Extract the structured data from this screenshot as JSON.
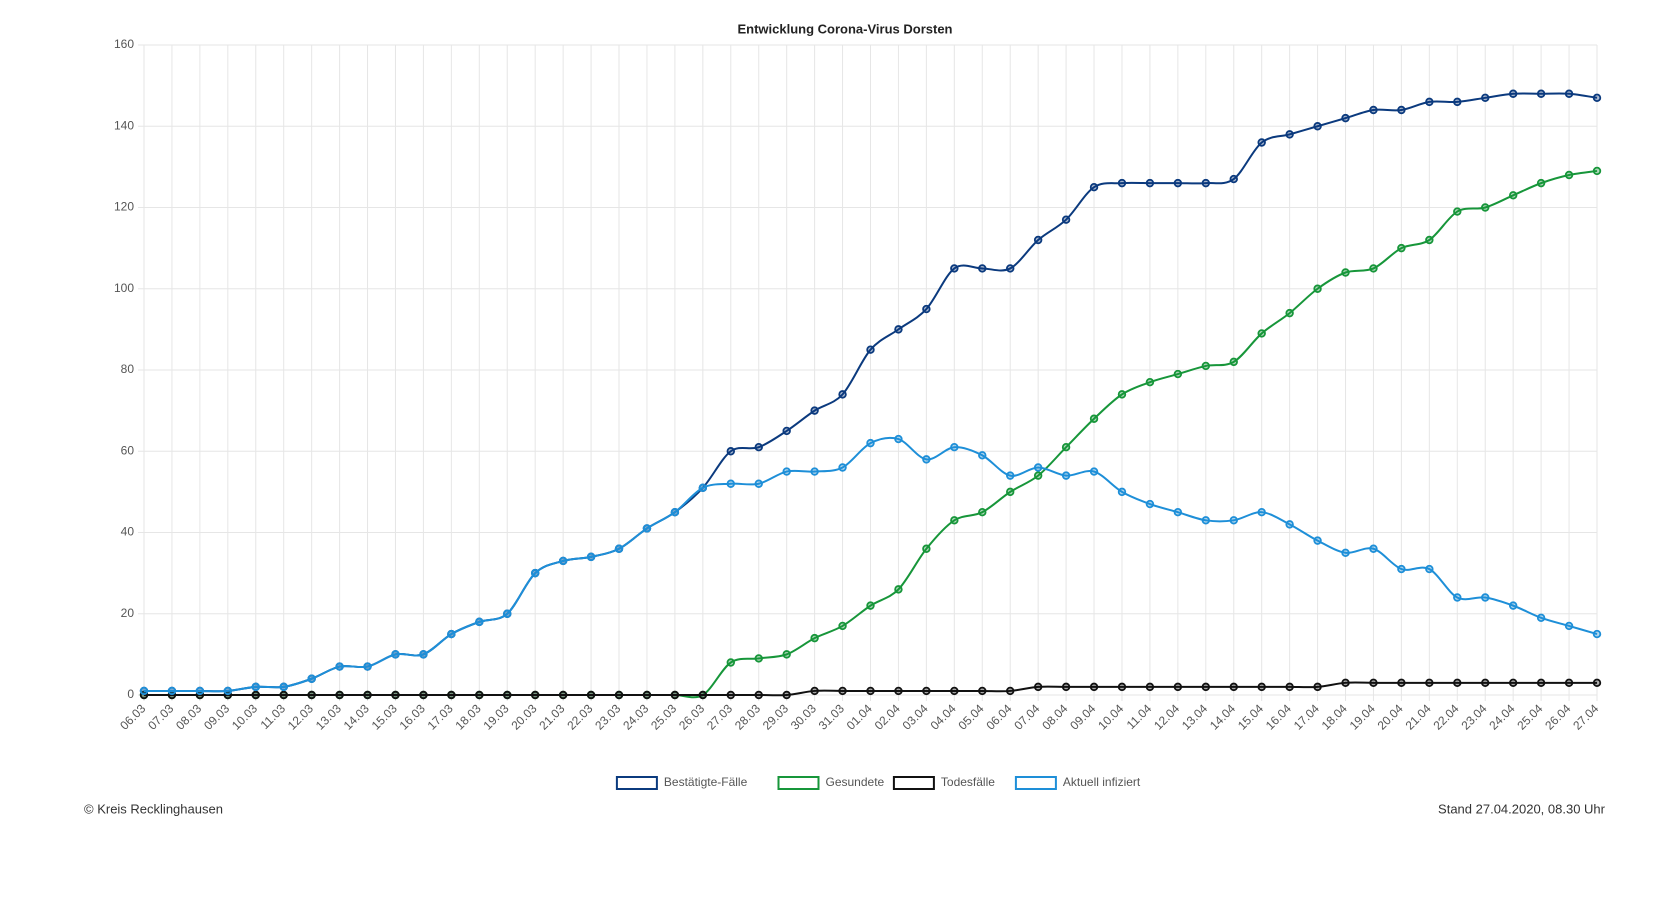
{
  "chart_data": {
    "type": "line",
    "title": "Entwicklung Corona-Virus Dorsten",
    "categories": [
      "06.03",
      "07.03",
      "08.03",
      "09.03",
      "10.03",
      "11.03",
      "12.03",
      "13.03",
      "14.03",
      "15.03",
      "16.03",
      "17.03",
      "18.03",
      "19.03",
      "20.03",
      "21.03",
      "22.03",
      "23.03",
      "24.03",
      "25.03",
      "26.03",
      "27.03",
      "28.03",
      "29.03",
      "30.03",
      "31.03",
      "01.04",
      "02.04",
      "03.04",
      "04.04",
      "05.04",
      "06.04",
      "07.04",
      "08.04",
      "09.04",
      "10.04",
      "11.04",
      "12.04",
      "13.04",
      "14.04",
      "15.04",
      "16.04",
      "17.04",
      "18.04",
      "19.04",
      "20.04",
      "21.04",
      "22.04",
      "23.04",
      "24.04",
      "25.04",
      "26.04",
      "27.04"
    ],
    "series": [
      {
        "name": "Bestätigte-Fälle",
        "color": "#0b3a7e",
        "values": [
          1,
          1,
          1,
          1,
          2,
          2,
          4,
          7,
          7,
          10,
          10,
          15,
          18,
          20,
          30,
          33,
          34,
          36,
          41,
          45,
          51,
          60,
          61,
          65,
          70,
          74,
          85,
          90,
          95,
          105,
          105,
          105,
          112,
          117,
          125,
          126,
          126,
          126,
          126,
          127,
          136,
          138,
          140,
          142,
          144,
          144,
          146,
          146,
          147,
          148,
          148,
          148,
          147
        ]
      },
      {
        "name": "Gesundete",
        "color": "#17963a",
        "values": [
          0,
          0,
          0,
          0,
          0,
          0,
          0,
          0,
          0,
          0,
          0,
          0,
          0,
          0,
          0,
          0,
          0,
          0,
          0,
          0,
          0,
          8,
          9,
          10,
          14,
          17,
          22,
          26,
          36,
          43,
          45,
          50,
          54,
          61,
          68,
          74,
          77,
          79,
          81,
          82,
          89,
          94,
          100,
          104,
          105,
          110,
          112,
          119,
          120,
          123,
          126,
          128,
          129
        ]
      },
      {
        "name": "Todesfälle",
        "color": "#111111",
        "values": [
          0,
          0,
          0,
          0,
          0,
          0,
          0,
          0,
          0,
          0,
          0,
          0,
          0,
          0,
          0,
          0,
          0,
          0,
          0,
          0,
          0,
          0,
          0,
          0,
          1,
          1,
          1,
          1,
          1,
          1,
          1,
          1,
          2,
          2,
          2,
          2,
          2,
          2,
          2,
          2,
          2,
          2,
          2,
          3,
          3,
          3,
          3,
          3,
          3,
          3,
          3,
          3,
          3
        ]
      },
      {
        "name": "Aktuell infiziert",
        "color": "#1e8fd8",
        "values": [
          1,
          1,
          1,
          1,
          2,
          2,
          4,
          7,
          7,
          10,
          10,
          15,
          18,
          20,
          30,
          33,
          34,
          36,
          41,
          45,
          51,
          52,
          52,
          55,
          55,
          56,
          62,
          63,
          58,
          61,
          59,
          54,
          56,
          54,
          55,
          50,
          47,
          45,
          43,
          43,
          45,
          42,
          38,
          35,
          36,
          31,
          31,
          24,
          24,
          22,
          19,
          17,
          15
        ]
      }
    ],
    "ylim": [
      0,
      160
    ],
    "yticks": [
      0,
      20,
      40,
      60,
      80,
      100,
      120,
      140,
      160
    ],
    "grid": true,
    "legend": "bottom",
    "source": "© Kreis Recklinghausen",
    "stand": "Stand 27.04.2020, 08.30 Uhr"
  }
}
